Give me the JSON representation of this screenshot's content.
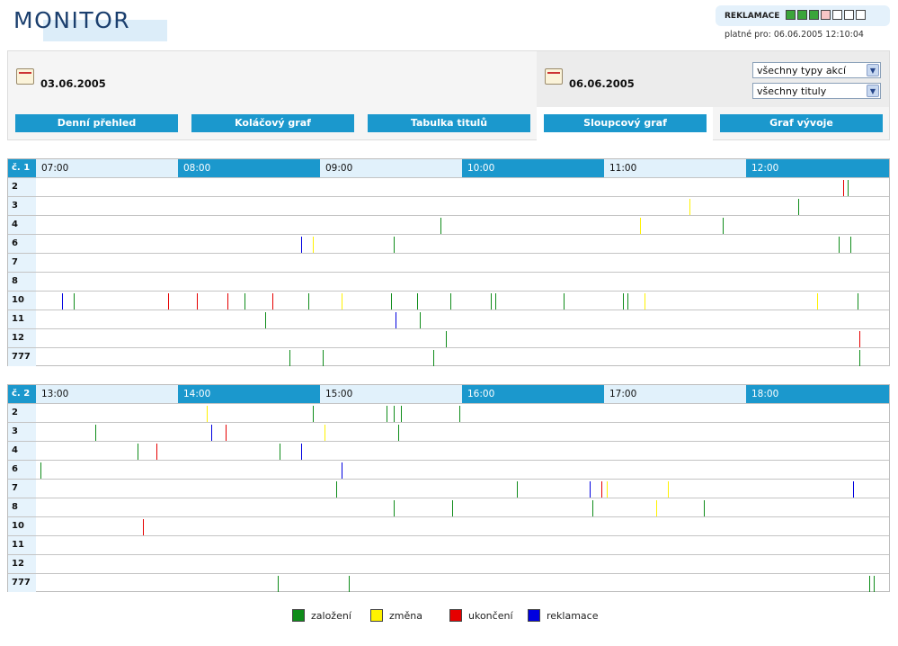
{
  "app": {
    "title": "MONITOR"
  },
  "reklamace": {
    "label": "REKLAMACE",
    "indicators": [
      "green",
      "green",
      "green",
      "pink",
      "white",
      "white",
      "white"
    ],
    "valid_label": "platné pro: 06.06.2005 12:10:04"
  },
  "colors": {
    "green": "#0f8c1a",
    "yellow": "#fff200",
    "red": "#e60000",
    "blue": "#0000e0",
    "accent": "#1b98cd"
  },
  "dates": {
    "from": "03.06.2005",
    "to": "06.06.2005"
  },
  "filters": {
    "types": "všechny typy akcí",
    "titles": "všechny tituly"
  },
  "nav": [
    "Denní přehled",
    "Koláčový graf",
    "Tabulka titulů",
    "Sloupcový graf",
    "Graf vývoje"
  ],
  "charts": [
    {
      "label": "č. 1",
      "hours": [
        "07:00",
        "08:00",
        "09:00",
        "10:00",
        "11:00",
        "12:00"
      ],
      "rows": [
        {
          "label": "2",
          "events": [
            {
              "t": "12:41",
              "c": "red"
            },
            {
              "t": "12:43",
              "c": "green"
            }
          ]
        },
        {
          "label": "3",
          "events": [
            {
              "t": "11:36",
              "c": "yellow"
            },
            {
              "t": "12:22",
              "c": "green"
            }
          ]
        },
        {
          "label": "4",
          "events": [
            {
              "t": "09:51",
              "c": "green"
            },
            {
              "t": "11:15",
              "c": "yellow"
            },
            {
              "t": "11:50",
              "c": "green"
            }
          ]
        },
        {
          "label": "6",
          "events": [
            {
              "t": "08:52",
              "c": "blue"
            },
            {
              "t": "08:57",
              "c": "yellow"
            },
            {
              "t": "09:31",
              "c": "green"
            },
            {
              "t": "12:39",
              "c": "green"
            },
            {
              "t": "12:44",
              "c": "green"
            }
          ]
        },
        {
          "label": "7",
          "events": []
        },
        {
          "label": "8",
          "events": []
        },
        {
          "label": "10",
          "events": [
            {
              "t": "07:11",
              "c": "blue"
            },
            {
              "t": "07:16",
              "c": "green"
            },
            {
              "t": "07:56",
              "c": "red"
            },
            {
              "t": "08:08",
              "c": "red"
            },
            {
              "t": "08:21",
              "c": "red"
            },
            {
              "t": "08:28",
              "c": "green"
            },
            {
              "t": "08:40",
              "c": "red"
            },
            {
              "t": "08:55",
              "c": "green"
            },
            {
              "t": "09:09",
              "c": "yellow"
            },
            {
              "t": "09:30",
              "c": "green"
            },
            {
              "t": "09:41",
              "c": "green"
            },
            {
              "t": "09:55",
              "c": "green"
            },
            {
              "t": "10:12",
              "c": "green"
            },
            {
              "t": "10:14",
              "c": "green"
            },
            {
              "t": "10:43",
              "c": "green"
            },
            {
              "t": "11:08",
              "c": "green"
            },
            {
              "t": "11:10",
              "c": "green"
            },
            {
              "t": "11:17",
              "c": "yellow"
            },
            {
              "t": "12:30",
              "c": "yellow"
            },
            {
              "t": "12:47",
              "c": "green"
            }
          ]
        },
        {
          "label": "11",
          "events": [
            {
              "t": "08:37",
              "c": "green"
            },
            {
              "t": "09:32",
              "c": "blue"
            },
            {
              "t": "09:42",
              "c": "green"
            }
          ]
        },
        {
          "label": "12",
          "events": [
            {
              "t": "09:53",
              "c": "green"
            },
            {
              "t": "12:48",
              "c": "red"
            }
          ]
        },
        {
          "label": "777",
          "events": [
            {
              "t": "08:47",
              "c": "green"
            },
            {
              "t": "09:01",
              "c": "green"
            },
            {
              "t": "09:48",
              "c": "green"
            },
            {
              "t": "12:48",
              "c": "green"
            }
          ]
        }
      ]
    },
    {
      "label": "č. 2",
      "hours": [
        "13:00",
        "14:00",
        "15:00",
        "16:00",
        "17:00",
        "18:00"
      ],
      "rows": [
        {
          "label": "2",
          "events": [
            {
              "t": "14:12",
              "c": "yellow"
            },
            {
              "t": "14:57",
              "c": "green"
            },
            {
              "t": "15:28",
              "c": "green"
            },
            {
              "t": "15:31",
              "c": "green"
            },
            {
              "t": "15:34",
              "c": "green"
            },
            {
              "t": "15:59",
              "c": "green"
            }
          ]
        },
        {
          "label": "3",
          "events": [
            {
              "t": "13:25",
              "c": "green"
            },
            {
              "t": "14:14",
              "c": "blue"
            },
            {
              "t": "14:20",
              "c": "red"
            },
            {
              "t": "15:02",
              "c": "yellow"
            },
            {
              "t": "15:33",
              "c": "green"
            }
          ]
        },
        {
          "label": "4",
          "events": [
            {
              "t": "13:43",
              "c": "green"
            },
            {
              "t": "13:51",
              "c": "red"
            },
            {
              "t": "14:43",
              "c": "green"
            },
            {
              "t": "14:52",
              "c": "blue"
            }
          ]
        },
        {
          "label": "6",
          "events": [
            {
              "t": "13:02",
              "c": "green"
            },
            {
              "t": "15:09",
              "c": "blue"
            }
          ]
        },
        {
          "label": "7",
          "events": [
            {
              "t": "15:07",
              "c": "green"
            },
            {
              "t": "16:23",
              "c": "green"
            },
            {
              "t": "16:54",
              "c": "blue"
            },
            {
              "t": "16:59",
              "c": "red"
            },
            {
              "t": "17:01",
              "c": "yellow"
            },
            {
              "t": "17:27",
              "c": "yellow"
            },
            {
              "t": "18:45",
              "c": "blue"
            }
          ]
        },
        {
          "label": "8",
          "events": [
            {
              "t": "15:31",
              "c": "green"
            },
            {
              "t": "15:56",
              "c": "green"
            },
            {
              "t": "16:55",
              "c": "green"
            },
            {
              "t": "17:22",
              "c": "yellow"
            },
            {
              "t": "17:42",
              "c": "green"
            }
          ]
        },
        {
          "label": "10",
          "events": [
            {
              "t": "13:45",
              "c": "red"
            }
          ]
        },
        {
          "label": "11",
          "events": []
        },
        {
          "label": "12",
          "events": []
        },
        {
          "label": "777",
          "events": [
            {
              "t": "14:42",
              "c": "green"
            },
            {
              "t": "15:12",
              "c": "green"
            },
            {
              "t": "18:52",
              "c": "green"
            },
            {
              "t": "18:54",
              "c": "green"
            }
          ]
        }
      ]
    }
  ],
  "legend": [
    {
      "label": "založení",
      "color": "green"
    },
    {
      "label": "změna",
      "color": "yellow"
    },
    {
      "label": "ukončení",
      "color": "red"
    },
    {
      "label": "reklamace",
      "color": "blue"
    }
  ]
}
